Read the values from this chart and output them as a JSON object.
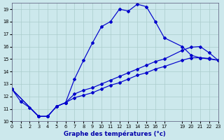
{
  "xlabel": "Graphe des températures (°c)",
  "bg_color": "#cce8ec",
  "grid_color": "#aacccc",
  "line_color": "#0000cc",
  "xlim": [
    0,
    23
  ],
  "ylim": [
    10,
    19.5
  ],
  "yticks": [
    10,
    11,
    12,
    13,
    14,
    15,
    16,
    17,
    18,
    19
  ],
  "xticks": [
    0,
    1,
    2,
    3,
    4,
    5,
    6,
    7,
    8,
    9,
    10,
    11,
    12,
    13,
    14,
    15,
    16,
    17,
    19,
    20,
    21,
    22,
    23
  ],
  "xtick_labels": [
    "0",
    "1",
    "2",
    "3",
    "4",
    "5",
    "6",
    "7",
    "8",
    "9",
    "10",
    "11",
    "12",
    "13",
    "14",
    "15",
    "16",
    "17",
    "19",
    "20",
    "21",
    "22",
    "23"
  ],
  "curve1_x": [
    0,
    1,
    2,
    3,
    4,
    5,
    6,
    7,
    8,
    9,
    10,
    11,
    12,
    13,
    14,
    15,
    16,
    17,
    19,
    20,
    21,
    22,
    23
  ],
  "curve1_y": [
    12.6,
    11.6,
    11.1,
    10.4,
    10.4,
    11.2,
    11.5,
    13.4,
    14.9,
    16.3,
    17.6,
    18.0,
    19.0,
    18.85,
    19.4,
    19.2,
    18.0,
    16.7,
    16.0,
    15.3,
    15.1,
    15.05,
    14.9
  ],
  "curve2_x": [
    0,
    3,
    4,
    5,
    6,
    7,
    8,
    9,
    10,
    11,
    12,
    13,
    14,
    15,
    16,
    17,
    19,
    20,
    21,
    22,
    23
  ],
  "curve2_y": [
    12.6,
    10.4,
    10.4,
    11.2,
    11.5,
    12.2,
    12.5,
    12.7,
    13.0,
    13.3,
    13.6,
    13.9,
    14.2,
    14.5,
    14.8,
    15.0,
    15.7,
    15.95,
    16.0,
    15.5,
    14.9
  ],
  "curve3_x": [
    0,
    3,
    4,
    5,
    6,
    7,
    8,
    9,
    10,
    11,
    12,
    13,
    14,
    15,
    16,
    17,
    19,
    20,
    21,
    22,
    23
  ],
  "curve3_y": [
    12.6,
    10.4,
    10.4,
    11.2,
    11.5,
    11.9,
    12.1,
    12.3,
    12.6,
    12.9,
    13.1,
    13.4,
    13.7,
    13.9,
    14.2,
    14.4,
    14.9,
    15.1,
    15.1,
    15.0,
    14.9
  ]
}
